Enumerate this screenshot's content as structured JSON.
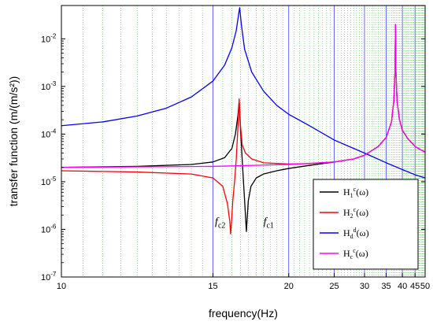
{
  "chart_data": {
    "type": "line",
    "xlabel": "frequency(Hz)",
    "ylabel": "transfer function (m/(m/s²))",
    "xscale": "reciprocal",
    "yscale": "log",
    "xlim": [
      10,
      50
    ],
    "ylim": [
      1e-07,
      0.05
    ],
    "x_ticks": [
      10,
      15,
      20,
      25,
      30,
      35,
      40,
      45,
      50
    ],
    "y_ticks": [
      {
        "value": 1e-07,
        "exp": "-7"
      },
      {
        "value": 1e-06,
        "exp": "-6"
      },
      {
        "value": 1e-05,
        "exp": "-5"
      },
      {
        "value": 0.0001,
        "exp": "-4"
      },
      {
        "value": 0.001,
        "exp": "-3"
      },
      {
        "value": 0.01,
        "exp": "-2"
      }
    ],
    "grid": {
      "major_x": true,
      "minor_x": true,
      "major_color": "#4040ff",
      "minor_color": "#33cc33"
    },
    "legend_position": "bottom-right",
    "series": [
      {
        "key": "H1c",
        "name": "H",
        "sub": "1",
        "sup": "c",
        "arg": "(ω)",
        "color": "#000000",
        "points": [
          [
            10,
            2e-05
          ],
          [
            12,
            2.1e-05
          ],
          [
            14,
            2.3e-05
          ],
          [
            15,
            2.6e-05
          ],
          [
            15.6,
            3.2e-05
          ],
          [
            16.0,
            5e-05
          ],
          [
            16.2,
            0.0001
          ],
          [
            16.35,
            0.00025
          ],
          [
            16.42,
            0.0005
          ],
          [
            16.47,
            0.0002
          ],
          [
            16.55,
            6e-05
          ],
          [
            16.65,
            1.5e-05
          ],
          [
            16.75,
            4e-06
          ],
          [
            16.82,
            1.5e-06
          ],
          [
            16.86,
            9e-07
          ],
          [
            16.9,
            1.5e-06
          ],
          [
            16.98,
            4e-06
          ],
          [
            17.15,
            8e-06
          ],
          [
            17.5,
            1.2e-05
          ],
          [
            18,
            1.45e-05
          ],
          [
            19,
            1.7e-05
          ],
          [
            20,
            1.9e-05
          ],
          [
            22,
            2.2e-05
          ],
          [
            25,
            2.6e-05
          ],
          [
            28,
            3e-05
          ],
          [
            30,
            3.6e-05
          ],
          [
            33,
            5.5e-05
          ],
          [
            35,
            8.5e-05
          ],
          [
            36.5,
            0.00018
          ],
          [
            37.2,
            0.0005
          ],
          [
            37.55,
            0.002
          ],
          [
            37.7,
            0.02
          ],
          [
            37.85,
            0.002
          ],
          [
            38.2,
            0.0005
          ],
          [
            39,
            0.0002
          ],
          [
            40,
            0.00012
          ],
          [
            42,
            8e-05
          ],
          [
            45,
            5.5e-05
          ],
          [
            48,
            4.6e-05
          ],
          [
            50,
            4.2e-05
          ]
        ]
      },
      {
        "key": "H2c",
        "name": "H",
        "sub": "2",
        "sup": "c",
        "arg": "(ω)",
        "color": "#ff0000",
        "points": [
          [
            10,
            1.7e-05
          ],
          [
            12,
            1.6e-05
          ],
          [
            14,
            1.45e-05
          ],
          [
            15,
            1.2e-05
          ],
          [
            15.5,
            8e-06
          ],
          [
            15.75,
            3.5e-06
          ],
          [
            15.88,
            1.5e-06
          ],
          [
            15.93,
            8e-07
          ],
          [
            15.98,
            1.5e-06
          ],
          [
            16.05,
            4e-06
          ],
          [
            16.15,
            1e-05
          ],
          [
            16.25,
            3e-05
          ],
          [
            16.35,
            0.00015
          ],
          [
            16.42,
            0.00055
          ],
          [
            16.5,
            0.00015
          ],
          [
            16.6,
            6e-05
          ],
          [
            16.8,
            4e-05
          ],
          [
            17.2,
            3e-05
          ],
          [
            18,
            2.5e-05
          ],
          [
            20,
            2.35e-05
          ],
          [
            22,
            2.4e-05
          ],
          [
            25,
            2.6e-05
          ],
          [
            28,
            3e-05
          ],
          [
            30,
            3.6e-05
          ],
          [
            33,
            5.5e-05
          ],
          [
            35,
            8.5e-05
          ],
          [
            36.5,
            0.00018
          ],
          [
            37.2,
            0.0005
          ],
          [
            37.55,
            0.002
          ],
          [
            37.7,
            0.02
          ],
          [
            37.85,
            0.002
          ],
          [
            38.2,
            0.0005
          ],
          [
            39,
            0.0002
          ],
          [
            40,
            0.00012
          ],
          [
            42,
            8e-05
          ],
          [
            45,
            5.5e-05
          ],
          [
            48,
            4.6e-05
          ],
          [
            50,
            4.2e-05
          ]
        ]
      },
      {
        "key": "Hdd",
        "name": "H",
        "sub": "d",
        "sup": "d",
        "arg": "(ω)",
        "color": "#0000ff",
        "points": [
          [
            10,
            0.00015
          ],
          [
            11,
            0.00018
          ],
          [
            12,
            0.00024
          ],
          [
            13,
            0.00035
          ],
          [
            14,
            0.0006
          ],
          [
            15,
            0.0013
          ],
          [
            15.6,
            0.0028
          ],
          [
            16.0,
            0.0065
          ],
          [
            16.25,
            0.015
          ],
          [
            16.4,
            0.035
          ],
          [
            16.45,
            0.045
          ],
          [
            16.55,
            0.02
          ],
          [
            16.75,
            0.006
          ],
          [
            17.2,
            0.002
          ],
          [
            18,
            0.0008
          ],
          [
            19,
            0.0004
          ],
          [
            20,
            0.00026
          ],
          [
            22,
            0.00015
          ],
          [
            25,
            7.5e-05
          ],
          [
            28,
            5e-05
          ],
          [
            30,
            4e-05
          ],
          [
            35,
            2.5e-05
          ],
          [
            40,
            1.8e-05
          ],
          [
            45,
            1.4e-05
          ],
          [
            50,
            1.2e-05
          ]
        ]
      },
      {
        "key": "Hcc",
        "name": "H",
        "sub": "c",
        "sup": "c",
        "arg": "(ω)",
        "color": "#ff00ff",
        "points": [
          [
            10,
            2e-05
          ],
          [
            15,
            2.1e-05
          ],
          [
            20,
            2.3e-05
          ],
          [
            25,
            2.6e-05
          ],
          [
            28,
            3e-05
          ],
          [
            30,
            3.6e-05
          ],
          [
            33,
            5.5e-05
          ],
          [
            35,
            8.5e-05
          ],
          [
            36.5,
            0.00018
          ],
          [
            37.2,
            0.0005
          ],
          [
            37.55,
            0.002
          ],
          [
            37.7,
            0.02
          ],
          [
            37.85,
            0.002
          ],
          [
            38.2,
            0.0005
          ],
          [
            39,
            0.0002
          ],
          [
            40,
            0.00012
          ],
          [
            42,
            8e-05
          ],
          [
            45,
            5.5e-05
          ],
          [
            48,
            4.6e-05
          ],
          [
            50,
            4.2e-05
          ]
        ]
      }
    ],
    "annotations": [
      {
        "key": "fc2",
        "text": "f",
        "sub": "c2",
        "x": 15.1,
        "y": 1.25e-06
      },
      {
        "key": "fc1",
        "text": "f",
        "sub": "c1",
        "x": 18.0,
        "y": 1.25e-06
      }
    ]
  }
}
